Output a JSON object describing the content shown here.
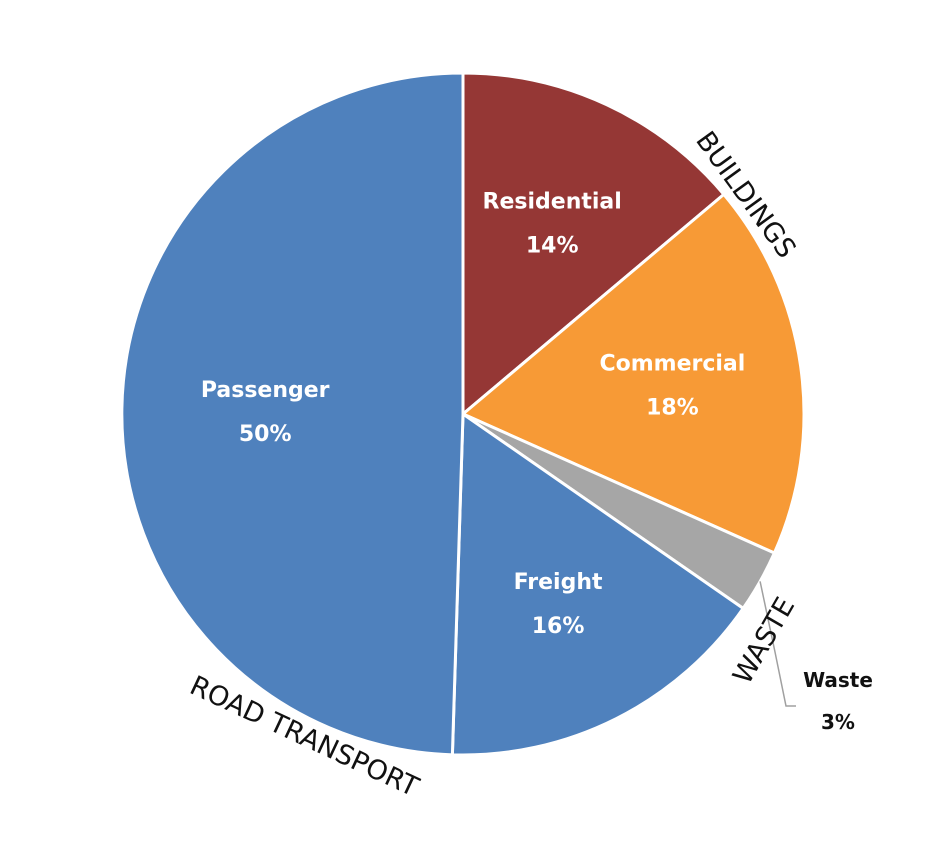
{
  "chart_data": {
    "type": "pie",
    "slices": [
      {
        "label": "Residential",
        "value": 14,
        "value_label": "14%",
        "color": "#953735",
        "group": "BUILDINGS"
      },
      {
        "label": "Commercial",
        "value": 18,
        "value_label": "18%",
        "color": "#F79A36",
        "group": "BUILDINGS"
      },
      {
        "label": "Waste",
        "value": 3,
        "value_label": "3%",
        "color": "#A6A6A6",
        "group": "WASTE"
      },
      {
        "label": "Freight",
        "value": 16,
        "value_label": "16%",
        "color": "#4F81BD",
        "group": "ROAD TRANSPORT"
      },
      {
        "label": "Passenger",
        "value": 50,
        "value_label": "50%",
        "color": "#4F81BD",
        "group": "ROAD TRANSPORT"
      }
    ],
    "groups": [
      "BUILDINGS",
      "WASTE",
      "ROAD TRANSPORT"
    ],
    "start_angle": "12 o'clock",
    "direction": "clockwise"
  }
}
